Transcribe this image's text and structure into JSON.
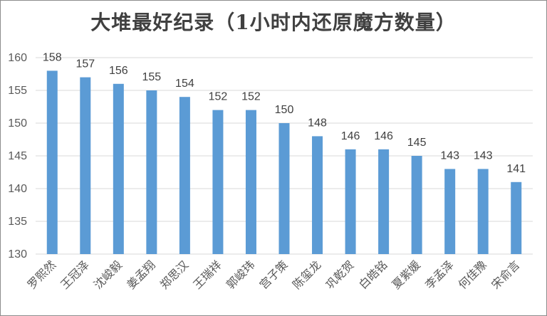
{
  "chart_data": {
    "type": "bar",
    "title": "大堆最好纪录（1小时内还原魔方数量）",
    "xlabel": "",
    "ylabel": "",
    "categories": [
      "罗熙然",
      "王冠泽",
      "沈峻毅",
      "姜孟翔",
      "郑思汉",
      "王瑞祥",
      "郭峻玮",
      "宫子策",
      "陈玺龙",
      "巩乾贺",
      "白皓铭",
      "夏紫媛",
      "李孟泽",
      "何佳豫",
      "宋俞言"
    ],
    "values": [
      158,
      157,
      156,
      155,
      154,
      152,
      152,
      150,
      148,
      146,
      146,
      145,
      143,
      143,
      141
    ],
    "ylim": [
      130,
      160
    ],
    "yticks": [
      130,
      135,
      140,
      145,
      150,
      155,
      160
    ],
    "grid": true,
    "legend": "none",
    "bar_color": "#5b9bd5",
    "grid_color": "#d9d9d9"
  }
}
